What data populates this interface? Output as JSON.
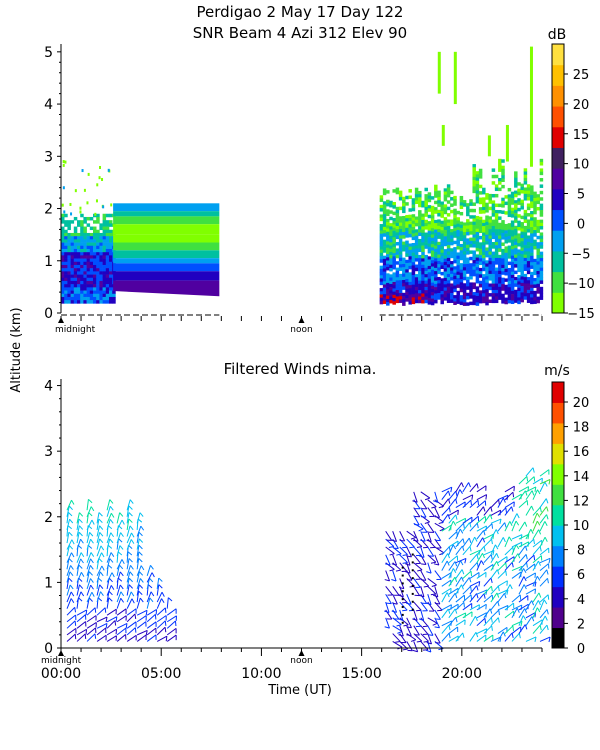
{
  "header": {
    "line1": "Perdigao   2 May 17 Day 122",
    "line2": "SNR Beam 4 Azi 312 Elev 90"
  },
  "chart_data": [
    {
      "type": "heatmap",
      "title": "SNR Beam 4 Azi 312 Elev 90",
      "ylabel": "Altitude (km)",
      "ylim": [
        0,
        5.15
      ],
      "yticks": [
        0,
        1,
        2,
        3,
        4,
        5
      ],
      "x_markers": [
        "midnight",
        "noon"
      ],
      "colorbar": {
        "unit": "dB",
        "range": [
          -15,
          30
        ],
        "ticks": [
          25,
          20,
          15,
          10,
          5,
          0,
          -5,
          -10,
          -15
        ],
        "colors": [
          "#80ff00",
          "#40e040",
          "#00c0a0",
          "#00a0f0",
          "#0050ff",
          "#2000c0",
          "#5000a0",
          "#402060",
          "#e00000",
          "#ff5000",
          "#ff9000",
          "#ffc000",
          "#ffe040"
        ]
      },
      "regions": [
        {
          "hours": [
            0.0,
            2.6
          ],
          "alt_km": [
            0.2,
            1.9
          ],
          "level_db": "-15 to 10"
        },
        {
          "hours": [
            2.6,
            7.9
          ],
          "alt_km": [
            0.4,
            2.1
          ],
          "level_db": "-15 to 5 (layered)"
        },
        {
          "hours": [
            16.2,
            24.0
          ],
          "alt_km": [
            0.2,
            2.8
          ],
          "level_db": "-15 to 15"
        }
      ],
      "data_gaps": [
        [
          7.9,
          15.9
        ]
      ]
    },
    {
      "type": "scatter",
      "title": "Filtered Winds nima.",
      "xlabel": "Time (UT)",
      "ylabel": "Altitude (km)",
      "xlim": [
        0,
        24
      ],
      "ylim": [
        0,
        4.1
      ],
      "xticks": [
        "00:00",
        "05:00",
        "10:00",
        "15:00",
        "20:00"
      ],
      "yticks": [
        0,
        1,
        2,
        3,
        4
      ],
      "x_markers": [
        "midnight",
        "noon"
      ],
      "colorbar": {
        "unit": "m/s",
        "range": [
          0,
          22
        ],
        "ticks": [
          20,
          18,
          16,
          14,
          12,
          10,
          8,
          6,
          4,
          2,
          0
        ],
        "colors": [
          "#000000",
          "#50008c",
          "#2000c0",
          "#0030ff",
          "#0080ff",
          "#00c0f0",
          "#00e0a0",
          "#40e040",
          "#80ff00",
          "#e0e000",
          "#ffa000",
          "#ff5000",
          "#e00000"
        ]
      },
      "series": [
        {
          "hours": [
            0.2,
            5.5
          ],
          "alt_km": [
            0.1,
            2.3
          ],
          "speed_ms": "2 to 10"
        },
        {
          "hours": [
            16.2,
            24.0
          ],
          "alt_km": [
            0.1,
            2.9
          ],
          "speed_ms": "0 to 12"
        }
      ]
    }
  ],
  "labels": {
    "top_colorbar_unit": "dB",
    "bottom_title": "Filtered Winds nima.",
    "bottom_colorbar_unit": "m/s",
    "y_axis_label": "Altitude (km)",
    "x_axis_label": "Time (UT)",
    "midnight": "midnight",
    "noon": "noon",
    "top_yticks": [
      "0",
      "1",
      "2",
      "3",
      "4",
      "5"
    ],
    "bottom_yticks": [
      "0",
      "1",
      "2",
      "3",
      "4"
    ],
    "xticks": [
      "00:00",
      "05:00",
      "10:00",
      "15:00",
      "20:00"
    ],
    "top_cbar_ticks": [
      "25",
      "20",
      "15",
      "10",
      "5",
      "0",
      "−5",
      "−10",
      "−15"
    ],
    "bottom_cbar_ticks": [
      "20",
      "18",
      "16",
      "14",
      "12",
      "10",
      "8",
      "6",
      "4",
      "2",
      "0"
    ]
  }
}
